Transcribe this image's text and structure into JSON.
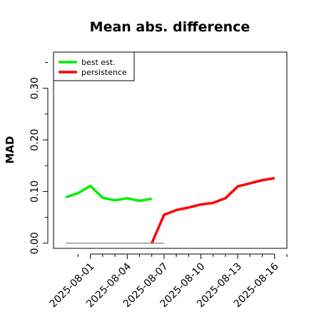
{
  "chart_data": {
    "type": "line",
    "title": "Mean abs. difference",
    "ylabel": "MAD",
    "xlabel": "",
    "ylim": [
      -0.01,
      0.37
    ],
    "xlim": [
      "2025-07-29",
      "2025-08-17"
    ],
    "yticks": [
      0.0,
      0.1,
      0.2,
      0.3
    ],
    "ytick_labels": [
      "0.00",
      "0.10",
      "0.20",
      "0.30"
    ],
    "yticks_minor": [
      0.05,
      0.15,
      0.25,
      0.35
    ],
    "xticks": [
      "2025-08-01",
      "2025-08-04",
      "2025-08-07",
      "2025-08-10",
      "2025-08-13",
      "2025-08-16"
    ],
    "xticks_minor": [
      "2025-07-31",
      "2025-08-02",
      "2025-08-03",
      "2025-08-05",
      "2025-08-06",
      "2025-08-08",
      "2025-08-09",
      "2025-08-11",
      "2025-08-12",
      "2025-08-14",
      "2025-08-15",
      "2025-08-17"
    ],
    "grid": false,
    "legend_position": "top-left",
    "baseline": {
      "x": [
        "2025-07-30",
        "2025-08-07"
      ],
      "y": [
        0,
        0
      ],
      "color": "#7f7f7f"
    },
    "series": [
      {
        "name": "best est.",
        "color": "#00ee00",
        "x": [
          "2025-07-30",
          "2025-07-31",
          "2025-08-01",
          "2025-08-02",
          "2025-08-03",
          "2025-08-04",
          "2025-08-05",
          "2025-08-06",
          "2025-08-07"
        ],
        "y": [
          0.089,
          0.097,
          0.111,
          0.088,
          0.083,
          0.087,
          0.082,
          0.086,
          null
        ]
      },
      {
        "name": "persistence",
        "color": "#ff0000",
        "x": [
          "2025-08-06",
          "2025-08-07",
          "2025-08-08",
          "2025-08-09",
          "2025-08-10",
          "2025-08-11",
          "2025-08-12",
          "2025-08-13",
          "2025-08-14",
          "2025-08-15",
          "2025-08-16"
        ],
        "y": [
          0.0,
          0.055,
          0.064,
          0.069,
          0.075,
          0.078,
          0.087,
          0.11,
          0.116,
          0.122,
          0.126
        ]
      }
    ]
  }
}
